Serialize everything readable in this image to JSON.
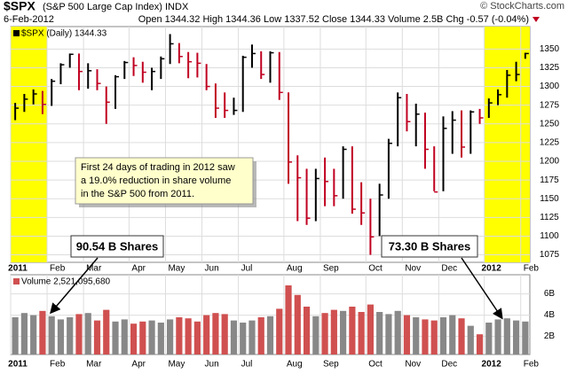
{
  "header": {
    "symbol": "$SPX",
    "name": "(S&P 500 Large Cap Index) INDX",
    "copyright": "© StockCharts.com",
    "date": "6-Feb-2012",
    "quote": "Open 1344.32 High 1344.36 Low 1337.52 Close 1344.33 Volume 2.5B Chg -0.57 (-0.04%)"
  },
  "annotations": {
    "note": [
      "First 24 days of trading in 2012 saw",
      "a 19.0% reduction in share volume",
      "in the S&P 500 from 2011."
    ],
    "label_2011": "90.54 B Shares",
    "label_2012": "73.30 B Shares"
  },
  "chart_data": [
    {
      "type": "ohlc",
      "legend": "$SPX (Daily) 1344.33",
      "up_color": "#000000",
      "down_color": "#c00020",
      "highlight_color": "#ffff00",
      "highlights": [
        [
          0,
          4
        ],
        [
          52,
          57
        ]
      ],
      "xlim": [
        0,
        57
      ],
      "xticks": [
        {
          "value": 0,
          "label": "2011"
        },
        {
          "value": 4,
          "label": "Feb"
        },
        {
          "value": 8,
          "label": "Mar"
        },
        {
          "value": 13,
          "label": "Apr"
        },
        {
          "value": 17,
          "label": "May"
        },
        {
          "value": 21,
          "label": "Jun"
        },
        {
          "value": 25,
          "label": "Jul"
        },
        {
          "value": 30,
          "label": "Aug"
        },
        {
          "value": 34,
          "label": "Sep"
        },
        {
          "value": 39,
          "label": "Oct"
        },
        {
          "value": 43,
          "label": "Nov"
        },
        {
          "value": 47,
          "label": "Dec"
        },
        {
          "value": 52,
          "label": "2012"
        },
        {
          "value": 56,
          "label": "Feb"
        }
      ],
      "ylim": [
        1065,
        1380
      ],
      "yticks": [
        1075,
        1100,
        1125,
        1150,
        1175,
        1200,
        1225,
        1250,
        1275,
        1300,
        1325,
        1350
      ],
      "grid": true,
      "high": [
        1278,
        1290,
        1296,
        1294,
        1310,
        1331,
        1344,
        1344,
        1331,
        1323,
        1300,
        1315,
        1334,
        1339,
        1333,
        1325,
        1340,
        1370,
        1358,
        1346,
        1345,
        1330,
        1304,
        1292,
        1285,
        1341,
        1356,
        1347,
        1347,
        1346,
        1292,
        1208,
        1190,
        1190,
        1205,
        1190,
        1220,
        1220,
        1172,
        1150,
        1170,
        1230,
        1292,
        1290,
        1277,
        1265,
        1220,
        1260,
        1267,
        1268,
        1268,
        1270,
        1284,
        1296,
        1322,
        1333,
        1345
      ],
      "low": [
        1255,
        1266,
        1276,
        1263,
        1274,
        1303,
        1325,
        1295,
        1297,
        1295,
        1250,
        1270,
        1310,
        1314,
        1305,
        1295,
        1310,
        1330,
        1331,
        1311,
        1312,
        1295,
        1258,
        1258,
        1262,
        1266,
        1325,
        1310,
        1305,
        1282,
        1170,
        1120,
        1115,
        1120,
        1140,
        1140,
        1150,
        1130,
        1115,
        1075,
        1100,
        1150,
        1220,
        1240,
        1220,
        1190,
        1160,
        1160,
        1210,
        1205,
        1210,
        1250,
        1258,
        1275,
        1285,
        1307,
        1337
      ],
      "close": [
        1271,
        1283,
        1290,
        1276,
        1307,
        1329,
        1343,
        1320,
        1321,
        1304,
        1279,
        1313,
        1332,
        1328,
        1319,
        1320,
        1337,
        1357,
        1340,
        1333,
        1331,
        1300,
        1271,
        1268,
        1268,
        1339,
        1344,
        1316,
        1345,
        1292,
        1199,
        1178,
        1124,
        1177,
        1173,
        1154,
        1216,
        1136,
        1131,
        1099,
        1155,
        1224,
        1285,
        1253,
        1263,
        1216,
        1159,
        1244,
        1255,
        1219,
        1266,
        1258,
        1278,
        1289,
        1315,
        1316,
        1344
      ]
    },
    {
      "type": "bar",
      "legend": "Volume 2,521,095,680",
      "up_color": "#888888",
      "down_color": "#d05050",
      "xlim": [
        0,
        57
      ],
      "xticks": [
        {
          "value": 0,
          "label": "2011"
        },
        {
          "value": 4,
          "label": "Feb"
        },
        {
          "value": 8,
          "label": "Mar"
        },
        {
          "value": 13,
          "label": "Apr"
        },
        {
          "value": 17,
          "label": "May"
        },
        {
          "value": 21,
          "label": "Jun"
        },
        {
          "value": 25,
          "label": "Jul"
        },
        {
          "value": 30,
          "label": "Aug"
        },
        {
          "value": 34,
          "label": "Sep"
        },
        {
          "value": 39,
          "label": "Oct"
        },
        {
          "value": 43,
          "label": "Nov"
        },
        {
          "value": 47,
          "label": "Dec"
        },
        {
          "value": 52,
          "label": "2012"
        },
        {
          "value": 56,
          "label": "Feb"
        }
      ],
      "ylim": [
        0.3,
        7.8
      ],
      "yticks": [
        {
          "value": 2,
          "label": "2B"
        },
        {
          "value": 4,
          "label": "4B"
        },
        {
          "value": 6,
          "label": "6B"
        }
      ],
      "grid": true,
      "values": [
        3.8,
        4.2,
        4.0,
        4.4,
        3.9,
        3.6,
        3.8,
        4.1,
        4.2,
        3.5,
        4.5,
        3.4,
        3.6,
        3.2,
        3.4,
        3.5,
        3.3,
        3.6,
        3.8,
        3.7,
        3.4,
        4.0,
        4.2,
        4.1,
        3.5,
        3.3,
        3.5,
        3.8,
        3.9,
        4.6,
        6.8,
        5.9,
        4.8,
        3.9,
        4.2,
        4.5,
        4.4,
        4.8,
        4.3,
        5.0,
        4.3,
        4.1,
        4.4,
        4.0,
        3.8,
        3.6,
        3.5,
        3.8,
        4.0,
        3.7,
        3.0,
        2.2,
        3.3,
        3.6,
        3.7,
        3.5,
        3.4
      ]
    }
  ]
}
